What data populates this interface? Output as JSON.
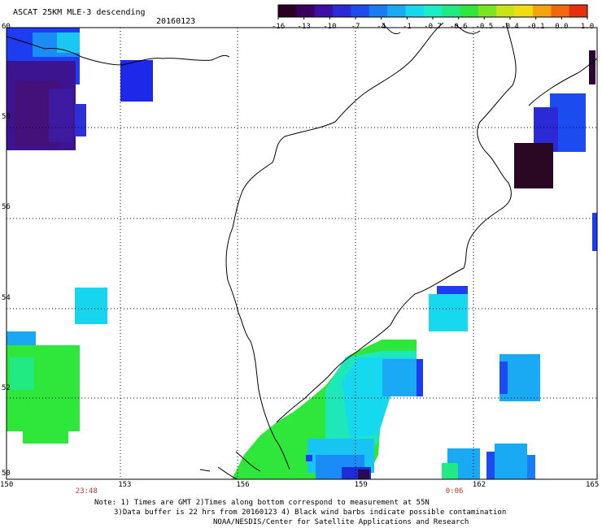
{
  "header": {
    "title": "ASCAT 25KM MLE-3 descending",
    "date": "20160123"
  },
  "colorbar": {
    "labels": [
      "-16",
      "-13",
      "-10",
      "-7",
      "-4",
      "-1",
      "-0.7",
      "-0.6",
      "-0.5",
      "-0.4",
      "-0.1",
      "0.0",
      "1.0"
    ],
    "colors": [
      "#2a0022",
      "#3a0060",
      "#3c10a6",
      "#2c2ad6",
      "#1f4cf0",
      "#1c7cf4",
      "#1aaaf3",
      "#16d8ef",
      "#1aeec8",
      "#22ea82",
      "#2ee73a",
      "#7ae623",
      "#c8e416",
      "#f2dc12",
      "#f6a40e",
      "#f2680e",
      "#e8300f"
    ]
  },
  "map": {
    "lon_range": [
      150,
      165
    ],
    "lat_range": [
      50,
      60
    ],
    "lon_ticks": [
      "150",
      "153",
      "156",
      "159",
      "162",
      "165"
    ],
    "lat_ticks": [
      "60",
      "58",
      "56",
      "54",
      "52",
      "50"
    ],
    "time_labels": [
      {
        "text": "23:48",
        "lon": 152
      },
      {
        "text": "0:06",
        "lon": 161.4
      }
    ],
    "time_color": "#c0392b"
  },
  "notes": {
    "line1": "Note: 1) Times are GMT 2)Times along bottom correspond to measurement at 55N",
    "line2": "3)Data buffer is 22 hrs from 20160123 4) Black wind barbs indicate possible contamination",
    "line3": "NOAA/NESDIS/Center for Satellite Applications and Research"
  }
}
